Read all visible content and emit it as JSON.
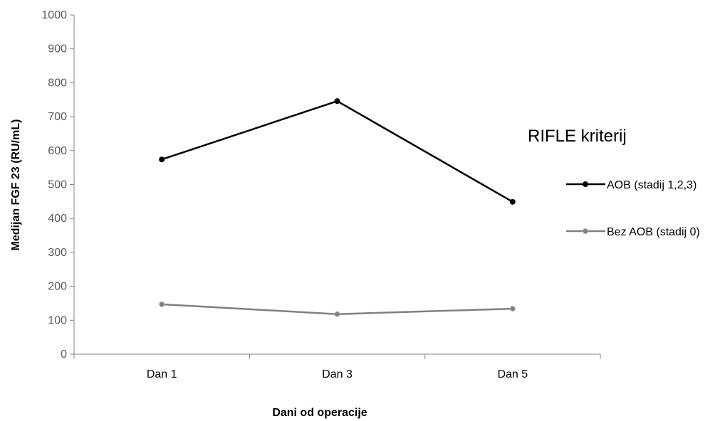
{
  "chart_data": {
    "type": "line",
    "categories": [
      "Dan 1",
      "Dan 3",
      "Dan 5"
    ],
    "series": [
      {
        "name": "AOB (stadij 1,2,3)",
        "values": [
          574,
          746,
          449
        ],
        "color": "#000000"
      },
      {
        "name": "Bez AOB (stadij 0)",
        "values": [
          147,
          118,
          134
        ],
        "color": "#808080"
      }
    ],
    "legend_title": "RIFLE kriterij",
    "legend_position": "right",
    "xlabel": "Dani od operacije",
    "ylabel": "Medijan FGF 23 (RU/mL)",
    "ylim": [
      0,
      1000
    ],
    "yticks": [
      "0",
      "100",
      "200",
      "300",
      "400",
      "500",
      "600",
      "700",
      "800",
      "900",
      "1000"
    ],
    "grid": false
  }
}
